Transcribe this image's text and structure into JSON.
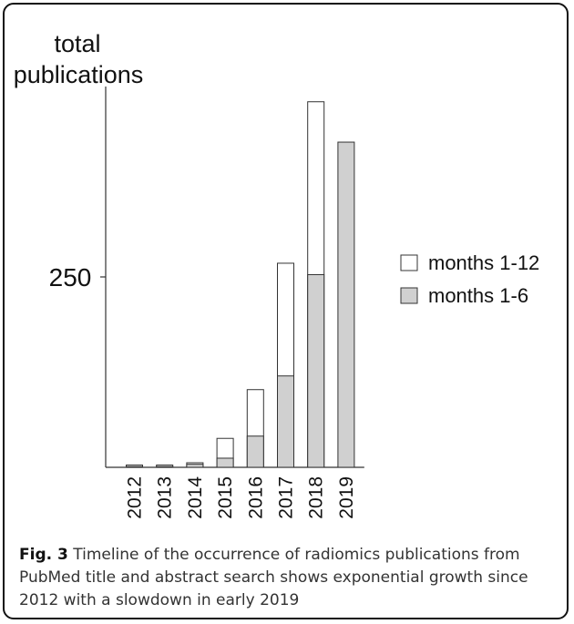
{
  "chart_data": {
    "type": "bar",
    "title": "",
    "ylabel_lines": [
      "total",
      "publications"
    ],
    "xlabel": "",
    "categories": [
      "2012",
      "2013",
      "2014",
      "2015",
      "2016",
      "2017",
      "2018",
      "2019"
    ],
    "series": [
      {
        "name": "months 1-12",
        "values": [
          3,
          3,
          6,
          38,
          102,
          268,
          480,
          0
        ],
        "color": "#ffffff"
      },
      {
        "name": "months 1-6",
        "values": [
          1,
          1,
          4,
          12,
          41,
          120,
          253,
          427
        ],
        "color": "#d0d0d0"
      }
    ],
    "yticks": [
      250
    ],
    "ylim": [
      0,
      500
    ],
    "grid": false,
    "legend": "right",
    "overlay": true
  },
  "caption": {
    "label": "Fig. 3",
    "text": " Timeline of the occurrence of radiomics publications from PubMed title and abstract search shows exponential growth since 2012 with a slowdown in early 2019"
  }
}
